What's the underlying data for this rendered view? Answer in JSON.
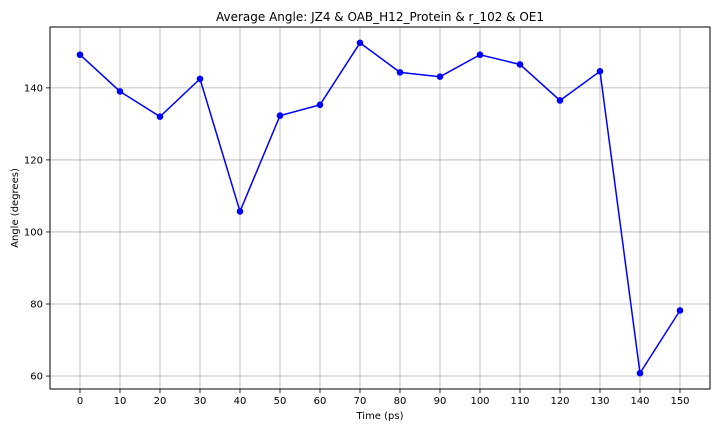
{
  "chart_data": {
    "type": "line",
    "title": "Average Angle: JZ4 & OAB_H12_Protein & r_102 & OE1",
    "xlabel": "Time (ps)",
    "ylabel": "Angle (degrees)",
    "x": [
      0,
      10,
      20,
      30,
      40,
      50,
      60,
      70,
      80,
      90,
      100,
      110,
      120,
      130,
      140,
      150
    ],
    "series": [
      {
        "values": [
          149.2,
          139.0,
          132.0,
          142.5,
          105.7,
          132.3,
          135.3,
          152.5,
          144.3,
          143.1,
          149.2,
          146.5,
          136.5,
          144.6,
          60.8,
          78.2
        ],
        "color": "#0000ff",
        "marker": "circle"
      }
    ],
    "xticks": [
      0,
      10,
      20,
      30,
      40,
      50,
      60,
      70,
      80,
      90,
      100,
      110,
      120,
      130,
      140,
      150
    ],
    "yticks": [
      60,
      80,
      100,
      120,
      140
    ],
    "xlim": [
      -7.5,
      157.5
    ],
    "ylim": [
      56.4,
      156.9
    ],
    "grid": true,
    "legend": "none"
  }
}
